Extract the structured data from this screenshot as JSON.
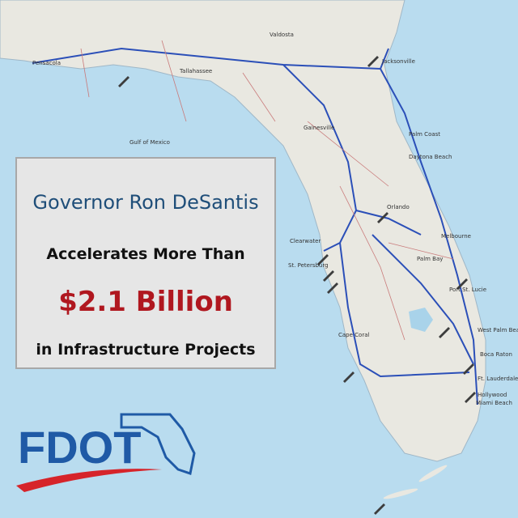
{
  "headline": {
    "line1": "Governor Ron DeSantis",
    "line2": "Accelerates More Than",
    "amount": "$2.1 Billion",
    "line4": "in Infrastructure Projects"
  },
  "logo": {
    "text": "FDOT"
  },
  "map": {
    "labels": [
      "Pensacola",
      "Tallahassee",
      "Valdosta",
      "Jacksonville",
      "Gainesville",
      "Palm Coast",
      "Daytona Beach",
      "Gulf of Mexico",
      "Orlando",
      "Clearwater",
      "St. Petersburg",
      "Melbourne",
      "Palm Bay",
      "Port St. Lucie",
      "Cape Coral",
      "West Palm Beach",
      "Boca Raton",
      "Ft. Lauderdale",
      "Hollywood",
      "Miami Beach"
    ]
  }
}
